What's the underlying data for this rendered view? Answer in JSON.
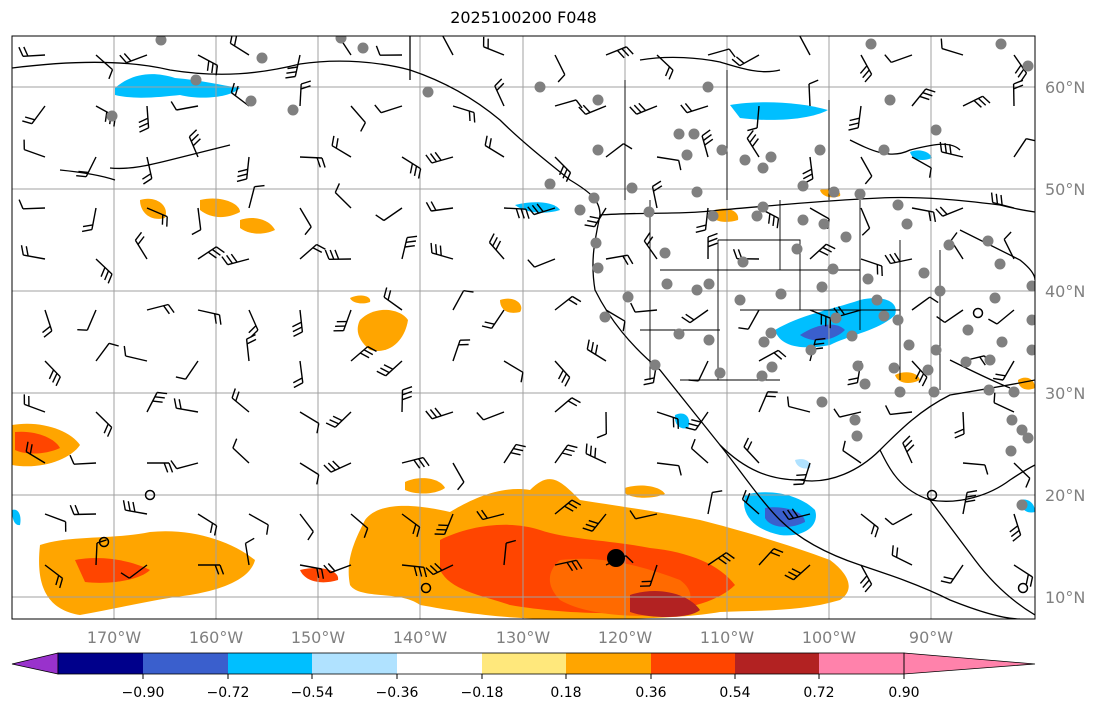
{
  "title": "2025100200 F048",
  "map": {
    "lat_labels": [
      "60°N",
      "50°N",
      "40°N",
      "30°N",
      "20°N",
      "10°N"
    ],
    "lon_labels": [
      "170°W",
      "160°W",
      "150°W",
      "140°W",
      "130°W",
      "120°W",
      "110°W",
      "100°W",
      "90°W"
    ],
    "features": [
      "wind-barbs",
      "coastlines",
      "state-borders",
      "station-dots",
      "shaded-contours",
      "gridlines"
    ]
  },
  "colorbar": {
    "tick_labels": [
      "−0.90",
      "−0.72",
      "−0.54",
      "−0.36",
      "−0.18",
      "0.18",
      "0.36",
      "0.54",
      "0.72",
      "0.90"
    ],
    "colors": [
      "#9932CC",
      "#00008B",
      "#3A5FCD",
      "#00BFFF",
      "#B0E2FF",
      "#FFFFFF",
      "#FFE87C",
      "#FFA500",
      "#FF4500",
      "#B22222",
      "#FF82AB"
    ]
  }
}
